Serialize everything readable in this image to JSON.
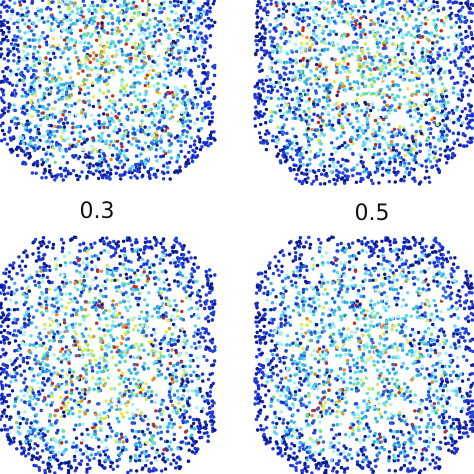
{
  "panels": [
    {
      "label": "0.3"
    },
    {
      "label": "0.5"
    }
  ]
}
